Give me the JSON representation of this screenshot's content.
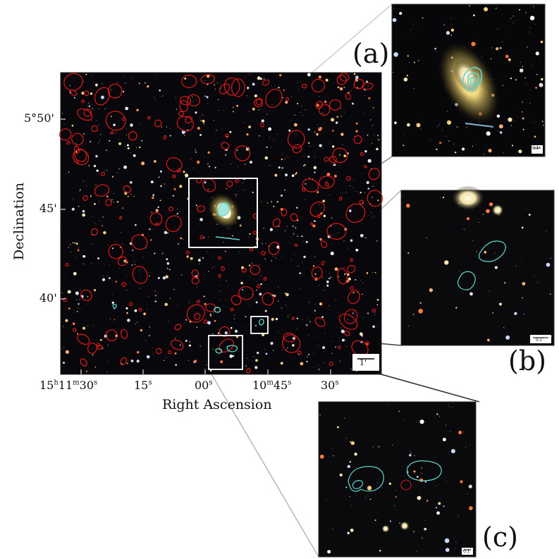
{
  "figure": {
    "xlabel": "Right Ascension",
    "ylabel": "Declination",
    "yticks": [
      "5°50'",
      "45'",
      "40'"
    ],
    "xticks": [
      "15h11m30s",
      "15s",
      "00s",
      "10m45s",
      "30s"
    ],
    "scale_main": "1'",
    "panels": [
      {
        "id": "a",
        "tag": "(a)",
        "scale": "0.1'"
      },
      {
        "id": "b",
        "tag": "(b)",
        "scale": "0.1'"
      },
      {
        "id": "c",
        "tag": "(c)",
        "scale": "0.1'"
      }
    ]
  },
  "colors": {
    "sky": "#08080c",
    "source_ellipse": "#e01818",
    "contour": "#5fd6d0",
    "inset_box": "#ffffff"
  }
}
